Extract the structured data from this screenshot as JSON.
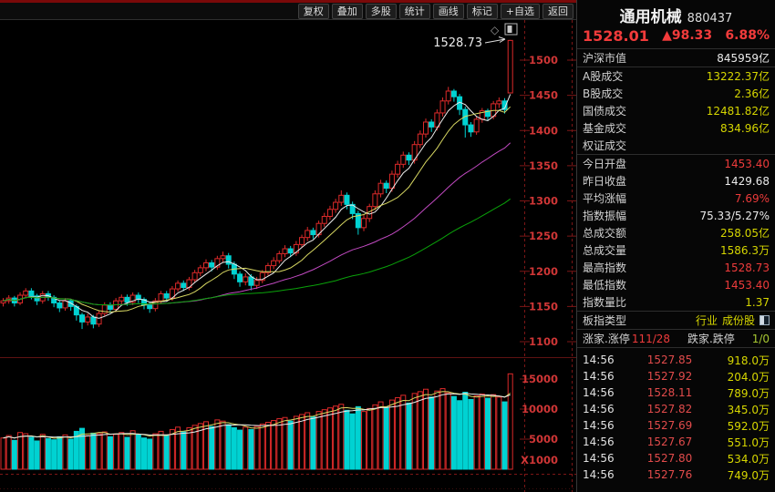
{
  "palette": {
    "up_red": "#dd2a2a",
    "down_cyan": "#00d2d2",
    "axis_red": "#cf3636",
    "frame_red": "#7c1616",
    "ma_fast": "#ececec",
    "ma_mid": "#d8d862",
    "ma_slow": "#c24ac2",
    "ma_long": "#0aa20a",
    "value_yellow": "#d6d600",
    "value_red": "#ee3b3b",
    "value_green": "#a8c832",
    "panel_text": "#d6d6d6"
  },
  "toolbar": {
    "buttons": [
      "复权",
      "叠加",
      "多股",
      "统计",
      "画线",
      "标记",
      "+自选",
      "返回"
    ]
  },
  "panel": {
    "header": {
      "name": "通用机械",
      "code": "880437",
      "price": "1528.01",
      "change": "▲98.33",
      "pct": "6.88%"
    },
    "rows": [
      {
        "label": "沪深市值",
        "value": "845959亿",
        "color": "white"
      },
      {
        "label": "A股成交",
        "value": "13222.37亿",
        "color": "yellow"
      },
      {
        "label": "B股成交",
        "value": "2.36亿",
        "color": "yellow"
      },
      {
        "label": "国债成交",
        "value": "12481.82亿",
        "color": "yellow"
      },
      {
        "label": "基金成交",
        "value": "834.96亿",
        "color": "yellow"
      },
      {
        "label": "权证成交",
        "value": "",
        "color": "white"
      },
      {
        "label": "今日开盘",
        "value": "1453.40",
        "color": "red"
      },
      {
        "label": "昨日收盘",
        "value": "1429.68",
        "color": "white"
      },
      {
        "label": "平均涨幅",
        "value": "7.69%",
        "color": "red"
      },
      {
        "label": "指数振幅",
        "value": "75.33/5.27%",
        "color": "white"
      },
      {
        "label": "总成交额",
        "value": "258.05亿",
        "color": "yellow"
      },
      {
        "label": "总成交量",
        "value": "1586.3万",
        "color": "yellow"
      },
      {
        "label": "最高指数",
        "value": "1528.73",
        "color": "red"
      },
      {
        "label": "最低指数",
        "value": "1453.40",
        "color": "red"
      },
      {
        "label": "指数量比",
        "value": "1.37",
        "color": "yellow"
      }
    ],
    "board_type": {
      "label": "板指类型",
      "industry": "行业",
      "constituents": "成份股"
    },
    "breadth": {
      "label_up": "涨家.涨停",
      "value_up": "111/28",
      "label_down": "跌家.跌停",
      "value_down": "1/0"
    }
  },
  "ticks": {
    "rows": [
      {
        "time": "14:56",
        "price": "1527.85",
        "vol": "918.0万"
      },
      {
        "time": "14:56",
        "price": "1527.92",
        "vol": "204.0万"
      },
      {
        "time": "14:56",
        "price": "1528.11",
        "vol": "789.0万"
      },
      {
        "time": "14:56",
        "price": "1527.82",
        "vol": "345.0万"
      },
      {
        "time": "14:56",
        "price": "1527.69",
        "vol": "592.0万"
      },
      {
        "time": "14:56",
        "price": "1527.67",
        "vol": "551.0万"
      },
      {
        "time": "14:56",
        "price": "1527.80",
        "vol": "534.0万"
      },
      {
        "time": "14:56",
        "price": "1527.76",
        "vol": "749.0万"
      }
    ]
  },
  "chart_data": {
    "type": "candlestick+volume",
    "title": "通用机械 880437",
    "annotation": {
      "text": "1528.73"
    },
    "y_ticks": [
      1500,
      1450,
      1400,
      1350,
      1300,
      1250,
      1200,
      1150,
      1100
    ],
    "y_range": [
      1080,
      1553
    ],
    "volume_ticks": [
      15000,
      10000,
      5000
    ],
    "volume_unit": "X1000",
    "ma_windows": [
      5,
      10,
      30,
      60
    ],
    "volume_ma_windows": [
      5,
      10
    ],
    "candles": [
      [
        1155,
        1158,
        1150,
        1162
      ],
      [
        1158,
        1162,
        1154,
        1166
      ],
      [
        1162,
        1155,
        1150,
        1165
      ],
      [
        1155,
        1166,
        1152,
        1170
      ],
      [
        1166,
        1172,
        1162,
        1176
      ],
      [
        1172,
        1165,
        1160,
        1176
      ],
      [
        1165,
        1158,
        1152,
        1168
      ],
      [
        1158,
        1168,
        1154,
        1172
      ],
      [
        1168,
        1163,
        1158,
        1172
      ],
      [
        1163,
        1155,
        1149,
        1166
      ],
      [
        1155,
        1148,
        1142,
        1158
      ],
      [
        1148,
        1158,
        1144,
        1162
      ],
      [
        1158,
        1150,
        1144,
        1161
      ],
      [
        1150,
        1138,
        1130,
        1153
      ],
      [
        1138,
        1128,
        1118,
        1141
      ],
      [
        1128,
        1135,
        1123,
        1140
      ],
      [
        1135,
        1125,
        1119,
        1138
      ],
      [
        1125,
        1140,
        1121,
        1144
      ],
      [
        1140,
        1152,
        1136,
        1156
      ],
      [
        1152,
        1146,
        1141,
        1156
      ],
      [
        1146,
        1158,
        1142,
        1162
      ],
      [
        1158,
        1163,
        1153,
        1167
      ],
      [
        1163,
        1156,
        1151,
        1167
      ],
      [
        1156,
        1166,
        1152,
        1170
      ],
      [
        1166,
        1160,
        1155,
        1170
      ],
      [
        1160,
        1152,
        1146,
        1163
      ],
      [
        1152,
        1147,
        1141,
        1156
      ],
      [
        1147,
        1158,
        1143,
        1162
      ],
      [
        1158,
        1168,
        1154,
        1172
      ],
      [
        1168,
        1162,
        1157,
        1172
      ],
      [
        1162,
        1175,
        1158,
        1179
      ],
      [
        1175,
        1183,
        1171,
        1187
      ],
      [
        1183,
        1177,
        1172,
        1187
      ],
      [
        1177,
        1188,
        1173,
        1192
      ],
      [
        1188,
        1198,
        1184,
        1202
      ],
      [
        1198,
        1205,
        1193,
        1209
      ],
      [
        1205,
        1212,
        1200,
        1217
      ],
      [
        1212,
        1206,
        1200,
        1216
      ],
      [
        1206,
        1218,
        1202,
        1222
      ],
      [
        1218,
        1222,
        1213,
        1228
      ],
      [
        1222,
        1210,
        1204,
        1226
      ],
      [
        1210,
        1196,
        1189,
        1214
      ],
      [
        1196,
        1185,
        1178,
        1200
      ],
      [
        1185,
        1192,
        1180,
        1197
      ],
      [
        1192,
        1180,
        1173,
        1196
      ],
      [
        1180,
        1187,
        1175,
        1192
      ],
      [
        1187,
        1198,
        1183,
        1202
      ],
      [
        1198,
        1208,
        1194,
        1212
      ],
      [
        1208,
        1215,
        1203,
        1220
      ],
      [
        1215,
        1225,
        1211,
        1229
      ],
      [
        1225,
        1232,
        1220,
        1237
      ],
      [
        1232,
        1226,
        1220,
        1236
      ],
      [
        1226,
        1238,
        1222,
        1243
      ],
      [
        1238,
        1248,
        1234,
        1252
      ],
      [
        1248,
        1258,
        1243,
        1263
      ],
      [
        1258,
        1252,
        1246,
        1262
      ],
      [
        1252,
        1268,
        1248,
        1272
      ],
      [
        1268,
        1278,
        1263,
        1283
      ],
      [
        1278,
        1288,
        1273,
        1293
      ],
      [
        1288,
        1298,
        1283,
        1303
      ],
      [
        1298,
        1308,
        1293,
        1315
      ],
      [
        1308,
        1295,
        1288,
        1312
      ],
      [
        1295,
        1282,
        1274,
        1299
      ],
      [
        1282,
        1262,
        1252,
        1286
      ],
      [
        1262,
        1275,
        1257,
        1280
      ],
      [
        1275,
        1292,
        1270,
        1296
      ],
      [
        1292,
        1310,
        1287,
        1315
      ],
      [
        1310,
        1325,
        1305,
        1330
      ],
      [
        1325,
        1318,
        1311,
        1329
      ],
      [
        1318,
        1338,
        1313,
        1343
      ],
      [
        1338,
        1352,
        1333,
        1357
      ],
      [
        1352,
        1365,
        1347,
        1370
      ],
      [
        1365,
        1358,
        1351,
        1369
      ],
      [
        1358,
        1380,
        1353,
        1385
      ],
      [
        1380,
        1395,
        1375,
        1400
      ],
      [
        1395,
        1412,
        1390,
        1417
      ],
      [
        1412,
        1405,
        1398,
        1416
      ],
      [
        1405,
        1425,
        1400,
        1430
      ],
      [
        1425,
        1442,
        1420,
        1447
      ],
      [
        1442,
        1456,
        1437,
        1462
      ],
      [
        1456,
        1448,
        1441,
        1459
      ],
      [
        1448,
        1430,
        1422,
        1452
      ],
      [
        1430,
        1408,
        1390,
        1434
      ],
      [
        1408,
        1398,
        1391,
        1412
      ],
      [
        1398,
        1416,
        1394,
        1420
      ],
      [
        1416,
        1428,
        1411,
        1432
      ],
      [
        1428,
        1420,
        1414,
        1431
      ],
      [
        1420,
        1438,
        1416,
        1442
      ],
      [
        1438,
        1442,
        1432,
        1447
      ],
      [
        1442,
        1429.68,
        1424,
        1446
      ],
      [
        1453.4,
        1528.01,
        1453.4,
        1528.73
      ]
    ],
    "volumes": [
      5200,
      5600,
      4800,
      6100,
      5900,
      5300,
      4700,
      5800,
      5100,
      4900,
      5400,
      5700,
      5000,
      6300,
      6800,
      5600,
      6000,
      5900,
      6200,
      5400,
      5800,
      6100,
      5300,
      6400,
      5700,
      5200,
      5000,
      5900,
      6300,
      5600,
      6600,
      7000,
      6200,
      6900,
      7300,
      7600,
      7900,
      7100,
      8200,
      8000,
      7400,
      6900,
      6500,
      7000,
      6600,
      7100,
      7500,
      7800,
      8100,
      8400,
      8600,
      8000,
      8800,
      9100,
      9400,
      8700,
      9600,
      9900,
      10200,
      10500,
      10800,
      9800,
      9200,
      10400,
      9600,
      10100,
      10700,
      11200,
      10300,
      11500,
      11900,
      12300,
      11000,
      12600,
      12900,
      13300,
      12000,
      13000,
      13400,
      12700,
      12100,
      11400,
      12800,
      11600,
      12200,
      12500,
      11800,
      12400,
      12000,
      11200,
      15863
    ]
  }
}
